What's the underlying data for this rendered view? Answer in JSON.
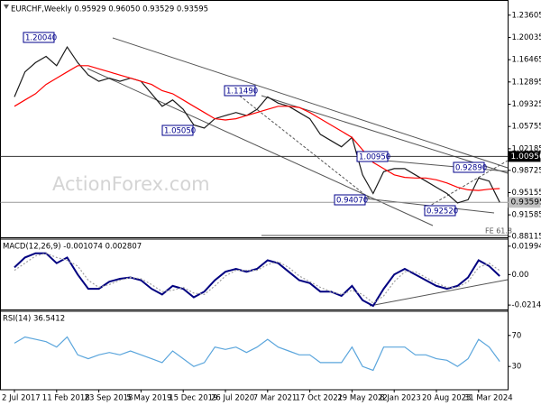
{
  "chart_data": [
    {
      "type": "line",
      "title": "EURCHF,Weekly 0.95929 0.96050 0.93529 0.93595",
      "series": [
        {
          "color": "#1a1a1a",
          "values": [
            1.105,
            1.145,
            1.16,
            1.17,
            1.155,
            1.185,
            1.16,
            1.14,
            1.13,
            1.135,
            1.13,
            1.135,
            1.13,
            1.11,
            1.09,
            1.1,
            1.085,
            1.06,
            1.055,
            1.07,
            1.075,
            1.08,
            1.075,
            1.085,
            1.105,
            1.095,
            1.09,
            1.08,
            1.07,
            1.045,
            1.035,
            1.025,
            1.04,
            0.98,
            0.95,
            0.985,
            0.99,
            0.99,
            0.98,
            0.97,
            0.96,
            0.95,
            0.935,
            0.94,
            0.975,
            0.97,
            0.936
          ]
        },
        {
          "color": "#ff0000",
          "values": [
            1.09,
            1.1,
            1.11,
            1.125,
            1.135,
            1.145,
            1.155,
            1.155,
            1.15,
            1.145,
            1.14,
            1.135,
            1.13,
            1.125,
            1.115,
            1.11,
            1.1,
            1.09,
            1.08,
            1.07,
            1.068,
            1.07,
            1.075,
            1.08,
            1.085,
            1.09,
            1.09,
            1.088,
            1.08,
            1.07,
            1.06,
            1.05,
            1.04,
            1.02,
            1.0,
            0.99,
            0.98,
            0.976,
            0.975,
            0.975,
            0.972,
            0.967,
            0.96,
            0.956,
            0.955,
            0.957,
            0.958
          ]
        }
      ],
      "ylim": [
        0.877,
        1.256
      ],
      "yticks": [
        1.23605,
        1.20035,
        1.16465,
        1.12895,
        1.09325,
        1.05755,
        1.02185,
        0.98725,
        0.95155,
        0.91585,
        0.88115
      ],
      "levels": [
        {
          "value": 1.0095,
          "label": "1.00950"
        },
        0.93595
      ],
      "annotations": [
        "1.20040",
        "1.05050",
        "1.11490",
        "1.00950",
        "0.94070",
        "0.92520",
        "0.92890",
        "FE 61.8"
      ],
      "watermark": "ActionForex.com"
    },
    {
      "type": "line",
      "title": "MACD(12,26,9) -0.001074 0.002807",
      "series": [
        {
          "color": "#000080",
          "values": [
            0.005,
            0.012,
            0.015,
            0.015,
            0.008,
            0.012,
            0.0,
            -0.01,
            -0.01,
            -0.005,
            -0.003,
            -0.002,
            -0.004,
            -0.01,
            -0.014,
            -0.008,
            -0.01,
            -0.016,
            -0.012,
            -0.004,
            0.002,
            0.004,
            0.002,
            0.004,
            0.01,
            0.008,
            0.002,
            -0.004,
            -0.006,
            -0.012,
            -0.012,
            -0.015,
            -0.008,
            -0.018,
            -0.022,
            -0.01,
            0.0,
            0.004,
            0.0,
            -0.004,
            -0.008,
            -0.01,
            -0.008,
            -0.002,
            0.01,
            0.006,
            -0.001074
          ]
        },
        {
          "color": "#a0a0a0",
          "values": [
            0.003,
            0.008,
            0.013,
            0.015,
            0.012,
            0.01,
            0.006,
            -0.004,
            -0.009,
            -0.007,
            -0.004,
            -0.002,
            -0.003,
            -0.007,
            -0.012,
            -0.011,
            -0.009,
            -0.013,
            -0.014,
            -0.008,
            -0.001,
            0.003,
            0.003,
            0.003,
            0.007,
            0.009,
            0.005,
            -0.001,
            -0.005,
            -0.009,
            -0.012,
            -0.014,
            -0.011,
            -0.014,
            -0.02,
            -0.015,
            -0.005,
            0.002,
            0.002,
            -0.002,
            -0.006,
            -0.009,
            -0.009,
            -0.005,
            0.005,
            0.008,
            0.002807
          ]
        }
      ],
      "ylim": [
        -0.0258,
        0.0243
      ],
      "yticks": [
        0.019943,
        {
          "value": 0,
          "label": "0.00"
        },
        -0.021434
      ]
    },
    {
      "type": "line",
      "title": "RSI(14) 36.5412",
      "categories": [
        "2 Jul 2017",
        null,
        null,
        null,
        "11 Feb 2018",
        null,
        null,
        null,
        "23 Sep 2018",
        null,
        null,
        null,
        "5 May 2019",
        null,
        null,
        null,
        "15 Dec 2019",
        null,
        null,
        null,
        "26 Jul 2020",
        null,
        null,
        null,
        "7 Mar 2021",
        null,
        null,
        null,
        "17 Oct 2021",
        null,
        null,
        null,
        "29 May 2022",
        null,
        null,
        null,
        "8 Jan 2023",
        null,
        null,
        null,
        "20 Aug 2023",
        null,
        null,
        null,
        "31 Mar 2024",
        null,
        null
      ],
      "series": [
        {
          "color": "#5aa5dc",
          "values": [
            60,
            68,
            65,
            62,
            55,
            68,
            45,
            40,
            45,
            48,
            45,
            50,
            45,
            40,
            35,
            50,
            40,
            30,
            35,
            55,
            52,
            55,
            48,
            55,
            65,
            55,
            50,
            45,
            45,
            35,
            35,
            35,
            55,
            30,
            25,
            55,
            55,
            55,
            45,
            45,
            40,
            38,
            30,
            40,
            65,
            55,
            36.5412
          ]
        }
      ],
      "ylim": [
        0,
        100
      ],
      "yticks": [
        70,
        30
      ]
    }
  ]
}
